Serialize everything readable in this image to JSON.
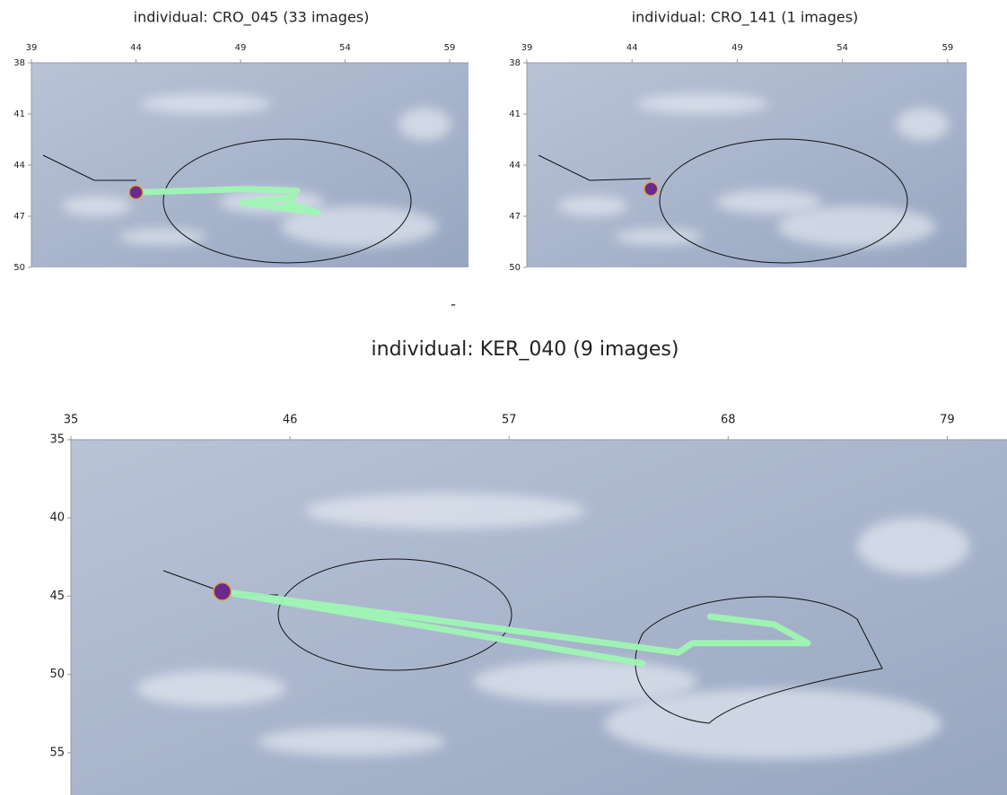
{
  "chart_data": [
    {
      "type": "map",
      "title": "individual: CRO_045 (33 images)",
      "xlim": [
        39,
        59.9
      ],
      "ylim": [
        38,
        50
      ],
      "xticks": [
        39,
        44,
        49,
        54,
        59
      ],
      "yticks": [
        38,
        41,
        44,
        47,
        50
      ],
      "series": [
        {
          "style": "line",
          "color": "#9ef5b3",
          "x": [
            44,
            49.1,
            51.7,
            51.2,
            52.7,
            49.1,
            51.5
          ],
          "y": [
            45.6,
            45.4,
            45.5,
            46.2,
            46.8,
            46.2,
            45.9
          ]
        },
        {
          "style": "point",
          "color": "#6a2a8c",
          "x": [
            44
          ],
          "y": [
            45.6
          ]
        }
      ]
    },
    {
      "type": "map",
      "title": "individual: CRO_141 (1 images)",
      "xlim": [
        39,
        59.9
      ],
      "ylim": [
        38,
        50
      ],
      "xticks": [
        39,
        44,
        49,
        54,
        59
      ],
      "yticks": [
        38,
        41,
        44,
        47,
        50
      ],
      "series": [
        {
          "style": "point",
          "color": "#6a2a8c",
          "x": [
            44.9
          ],
          "y": [
            45.4
          ]
        }
      ]
    },
    {
      "type": "map",
      "title": "individual: KER_040 (9 images)",
      "xlim": [
        35,
        82
      ],
      "ylim": [
        35,
        57.7
      ],
      "xticks": [
        35,
        46,
        57,
        68,
        79
      ],
      "yticks": [
        35,
        40,
        45,
        50,
        55
      ],
      "series": [
        {
          "style": "line",
          "color": "#9ef5b3",
          "x": [
            63.7,
            42.6,
            65.5,
            66.2,
            72.0,
            70.3,
            67.1
          ],
          "y": [
            49.3,
            44.7,
            48.6,
            48.0,
            48.0,
            46.8,
            46.3
          ]
        },
        {
          "style": "point",
          "color": "#6a2a8c",
          "x": [
            42.6
          ],
          "y": [
            44.7
          ]
        }
      ]
    }
  ],
  "separator": "-"
}
